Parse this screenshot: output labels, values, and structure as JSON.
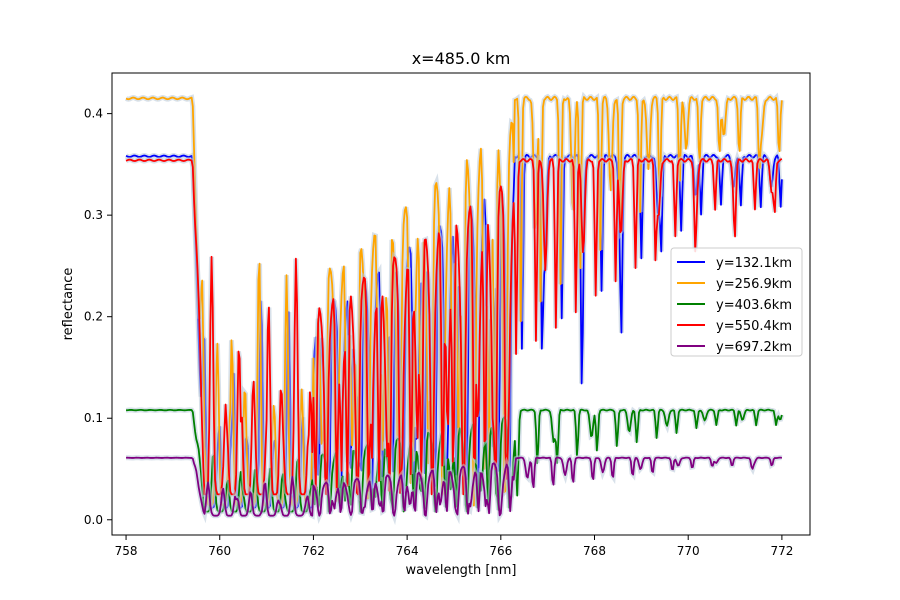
{
  "chart_data": {
    "type": "line",
    "title": "x=485.0 km",
    "xlabel": "wavelength [nm]",
    "ylabel": "reflectance",
    "xlim": [
      757.7,
      772.6
    ],
    "ylim": [
      -0.015,
      0.44
    ],
    "xticks": [
      758,
      760,
      762,
      764,
      766,
      768,
      770,
      772
    ],
    "xtick_labels": [
      "758",
      "760",
      "762",
      "764",
      "766",
      "768",
      "770",
      "772"
    ],
    "yticks": [
      0.0,
      0.1,
      0.2,
      0.3,
      0.4
    ],
    "ytick_labels": [
      "0.0",
      "0.1",
      "0.2",
      "0.3",
      "0.4"
    ],
    "grid": false,
    "legend_position": "center-right",
    "series": [
      {
        "name": "y=132.1km",
        "color": "#0000ff",
        "baseline": 0.358,
        "trough": 0.012,
        "wing": 0.24,
        "seed": 1.3
      },
      {
        "name": "y=256.9km",
        "color": "#ffa500",
        "baseline": 0.415,
        "trough": 0.014,
        "wing": 0.29,
        "seed": 2.1
      },
      {
        "name": "y=403.6km",
        "color": "#008000",
        "baseline": 0.108,
        "trough": 0.008,
        "wing": 0.07,
        "seed": 3.7
      },
      {
        "name": "y=550.4km",
        "color": "#ff0000",
        "baseline": 0.354,
        "trough": 0.025,
        "wing": 0.27,
        "seed": 4.4
      },
      {
        "name": "y=697.2km",
        "color": "#800080",
        "baseline": 0.061,
        "trough": 0.004,
        "wing": 0.045,
        "seed": 5.9
      }
    ],
    "x_range": [
      758.0,
      772.0
    ],
    "band_edge": 759.5,
    "band_end": 766.3
  }
}
